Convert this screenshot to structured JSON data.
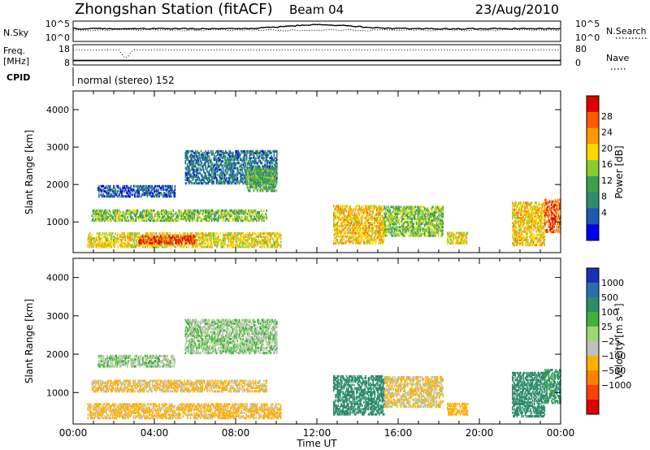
{
  "header": {
    "station": "Zhongshan Station (fitACF)",
    "beam": "Beam 04",
    "date": "23/Aug/2010"
  },
  "top_panels": {
    "nsky_label": "N.Sky",
    "nsky_ticks": [
      "10^5",
      "10^0"
    ],
    "nsearch_label": "N.Search",
    "nsearch_ticks": [
      "10^5",
      "10^0"
    ],
    "freq_label": "Freq.",
    "freq_unit": "[MHz]",
    "freq_ticks": [
      "18",
      "8"
    ],
    "nave_label": "Nave",
    "nave_ticks": [
      "80",
      "0"
    ],
    "cpid_label": "CPID",
    "cpid_text": "normal (stereo) 152"
  },
  "chart_data": [
    {
      "type": "heatmap",
      "name": "power",
      "ylabel": "Slant Range [km]",
      "ylim": [
        180,
        4500
      ],
      "yticks": [
        1000,
        2000,
        3000,
        4000
      ],
      "xlim": [
        0,
        24
      ],
      "colorbar": {
        "label": "Power [dB]",
        "ticks": [
          "28",
          "24",
          "20",
          "16",
          "12",
          "8",
          "4"
        ],
        "colors": [
          "#e00000",
          "#ff5a00",
          "#ff9a00",
          "#ffd700",
          "#8acc30",
          "#3aa050",
          "#2e8c6c",
          "#1e58b0",
          "#0000ee"
        ]
      },
      "clusters": [
        {
          "t": [
            0.7,
            10.2
          ],
          "r": [
            300,
            700
          ],
          "v": 18
        },
        {
          "t": [
            3.2,
            6.0
          ],
          "r": [
            400,
            620
          ],
          "v": 28
        },
        {
          "t": [
            0.9,
            9.5
          ],
          "r": [
            1000,
            1300
          ],
          "v": 14
        },
        {
          "t": [
            1.2,
            5.0
          ],
          "r": [
            1650,
            1950
          ],
          "v": 4
        },
        {
          "t": [
            5.5,
            10.0
          ],
          "r": [
            2000,
            2900
          ],
          "v": 6
        },
        {
          "t": [
            8.5,
            10.0
          ],
          "r": [
            1800,
            2400
          ],
          "v": 12
        },
        {
          "t": [
            12.8,
            15.3
          ],
          "r": [
            400,
            1400
          ],
          "v": 20
        },
        {
          "t": [
            15.3,
            18.2
          ],
          "r": [
            600,
            1400
          ],
          "v": 14
        },
        {
          "t": [
            18.4,
            19.4
          ],
          "r": [
            400,
            700
          ],
          "v": 18
        },
        {
          "t": [
            21.6,
            23.2
          ],
          "r": [
            350,
            1500
          ],
          "v": 20
        },
        {
          "t": [
            23.2,
            24.0
          ],
          "r": [
            700,
            1600
          ],
          "v": 26
        }
      ]
    },
    {
      "type": "heatmap",
      "name": "velocity",
      "ylabel": "Slant Range [km]",
      "ylim": [
        180,
        4500
      ],
      "yticks": [
        1000,
        2000,
        3000,
        4000
      ],
      "xlim": [
        0,
        24
      ],
      "xticks": [
        "00:00",
        "04:00",
        "08:00",
        "12:00",
        "16:00",
        "20:00",
        "00:00"
      ],
      "xlabel": "Time UT",
      "colorbar": {
        "label": "Velocity [m s⁻¹]",
        "ticks": [
          "1000",
          "500",
          "100",
          "25",
          "−25",
          "−100",
          "−500",
          "−1000"
        ],
        "colors": [
          "#1830b8",
          "#2a6eb0",
          "#2e8c6c",
          "#40b040",
          "#9ed870",
          "#c0c0c0",
          "#ffb000",
          "#ff8000",
          "#ff4000",
          "#e00000"
        ]
      },
      "clusters": [
        {
          "t": [
            0.7,
            10.2
          ],
          "r": [
            300,
            700
          ],
          "v": -150
        },
        {
          "t": [
            0.9,
            9.5
          ],
          "r": [
            1000,
            1300
          ],
          "v": -120
        },
        {
          "t": [
            1.2,
            5.0
          ],
          "r": [
            1650,
            1950
          ],
          "v": 0
        },
        {
          "t": [
            5.5,
            10.0
          ],
          "r": [
            2000,
            2900
          ],
          "v": 0
        },
        {
          "t": [
            12.8,
            15.3
          ],
          "r": [
            400,
            1400
          ],
          "v": 400
        },
        {
          "t": [
            15.3,
            18.2
          ],
          "r": [
            600,
            1400
          ],
          "v": -100
        },
        {
          "t": [
            18.4,
            19.4
          ],
          "r": [
            400,
            700
          ],
          "v": -200
        },
        {
          "t": [
            21.6,
            23.2
          ],
          "r": [
            350,
            1500
          ],
          "v": 200
        },
        {
          "t": [
            23.2,
            24.0
          ],
          "r": [
            700,
            1600
          ],
          "v": 150
        }
      ]
    }
  ]
}
